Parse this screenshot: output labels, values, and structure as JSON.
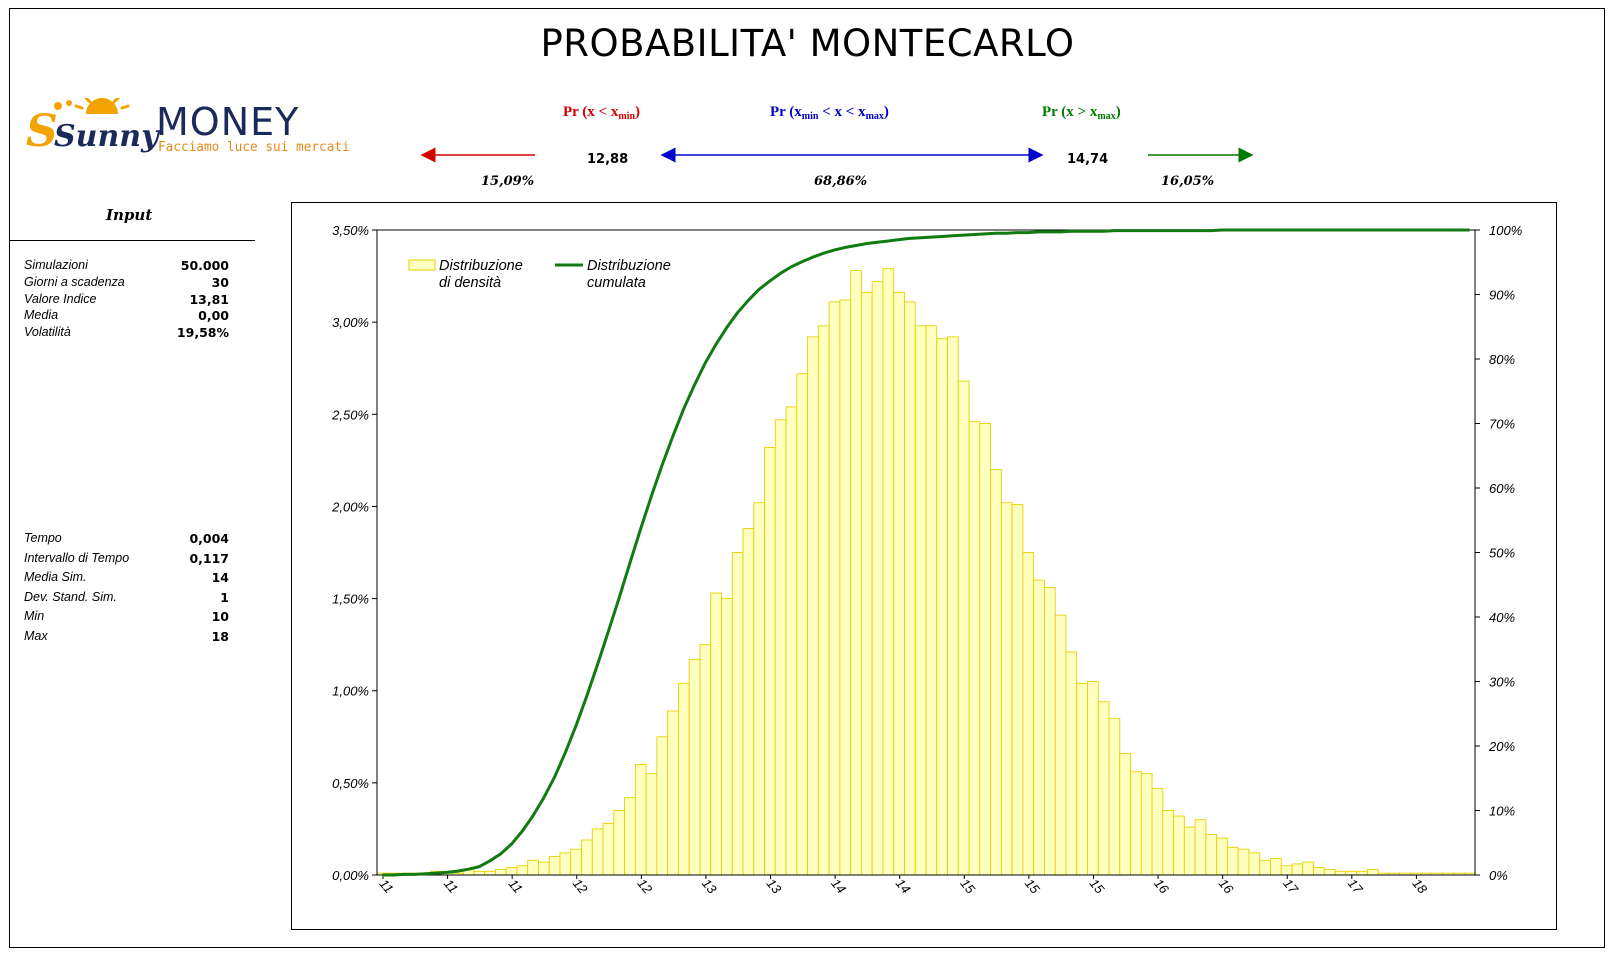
{
  "title": "PROBABILITA' MONTECARLO",
  "logo": {
    "name_part1": "Sunny",
    "name_part2": "MONEY",
    "tagline": "Facciamo luce sui mercati"
  },
  "probabilities": {
    "left": {
      "label_prefix": "Pr (x < x",
      "label_sub": "min",
      "label_suffix": ")",
      "color": "#d40000",
      "pct": "15,09%"
    },
    "mid": {
      "label_prefix": "Pr (x",
      "label_sub1": "min",
      "label_middle": " < x < x",
      "label_sub2": "max",
      "label_suffix": ")",
      "color": "#0000cc",
      "pct": "68,86%"
    },
    "right": {
      "label_prefix": "Pr (x > x",
      "label_sub": "max",
      "label_suffix": ")",
      "color": "#007a00",
      "pct": "16,05%"
    },
    "x_min": "12,88",
    "x_max": "14,74"
  },
  "input": {
    "title": "Input",
    "params": [
      {
        "label": "Simulazioni",
        "value": "50.000"
      },
      {
        "label": "Giorni a scadenza",
        "value": "30"
      },
      {
        "label": "Valore Indice",
        "value": "13,81"
      },
      {
        "label": "Media",
        "value": "0,00"
      },
      {
        "label": "Volatilità",
        "value": "19,58%"
      }
    ],
    "stats": [
      {
        "label": "Tempo",
        "value": "0,004"
      },
      {
        "label": "Intervallo di Tempo",
        "value": "0,117"
      },
      {
        "label": "Media Sim.",
        "value": "14"
      },
      {
        "label": "Dev. Stand. Sim.",
        "value": "1"
      },
      {
        "label": "Min",
        "value": "10"
      },
      {
        "label": "Max",
        "value": "18"
      }
    ]
  },
  "colors": {
    "bar_fill": "#ffffc0",
    "bar_stroke": "#e6d200",
    "line": "#117a11"
  },
  "chart_data": {
    "type": "bar",
    "y_left": {
      "min": 0,
      "max": 3.5,
      "ticks": [
        "0,00%",
        "0,50%",
        "1,00%",
        "1,50%",
        "2,00%",
        "2,50%",
        "3,00%",
        "3,50%"
      ]
    },
    "y_right": {
      "min": 0,
      "max": 100,
      "ticks": [
        "0%",
        "10%",
        "20%",
        "30%",
        "40%",
        "50%",
        "60%",
        "70%",
        "80%",
        "90%",
        "100%"
      ]
    },
    "x_tick_labels": [
      "11",
      "11",
      "11",
      "12",
      "12",
      "13",
      "13",
      "14",
      "14",
      "15",
      "15",
      "15",
      "16",
      "16",
      "17",
      "17",
      "18"
    ],
    "grid": false,
    "legend_position": "top-left",
    "series": [
      {
        "name": "Distribuzione di densità",
        "type": "bar",
        "values": [
          0.01,
          0.01,
          0.01,
          0.01,
          0.01,
          0.02,
          0.02,
          0.01,
          0.03,
          0.02,
          0.02,
          0.03,
          0.04,
          0.05,
          0.08,
          0.07,
          0.1,
          0.12,
          0.14,
          0.19,
          0.25,
          0.28,
          0.35,
          0.42,
          0.6,
          0.55,
          0.75,
          0.89,
          1.04,
          1.17,
          1.25,
          1.53,
          1.5,
          1.75,
          1.88,
          2.02,
          2.32,
          2.47,
          2.54,
          2.72,
          2.92,
          2.98,
          3.11,
          3.12,
          3.28,
          3.16,
          3.22,
          3.29,
          3.16,
          3.11,
          2.98,
          2.98,
          2.91,
          2.92,
          2.68,
          2.46,
          2.45,
          2.2,
          2.02,
          2.01,
          1.75,
          1.6,
          1.56,
          1.41,
          1.21,
          1.04,
          1.05,
          0.94,
          0.85,
          0.66,
          0.56,
          0.55,
          0.47,
          0.35,
          0.32,
          0.26,
          0.3,
          0.22,
          0.2,
          0.15,
          0.14,
          0.12,
          0.08,
          0.09,
          0.05,
          0.06,
          0.07,
          0.04,
          0.03,
          0.02,
          0.02,
          0.02,
          0.03,
          0.01,
          0.01,
          0.01,
          0.01,
          0.01,
          0.01,
          0.01,
          0.01,
          0.01
        ]
      },
      {
        "name": "Distribuzione cumulata",
        "type": "line",
        "values": [
          0,
          0,
          0.1,
          0.1,
          0.2,
          0.3,
          0.4,
          0.6,
          0.9,
          1.3,
          2.2,
          3.3,
          4.8,
          6.8,
          9.2,
          12,
          15.2,
          19,
          23.2,
          27.8,
          32.7,
          37.8,
          43,
          48.4,
          53.7,
          58.8,
          63.6,
          68.1,
          72.3,
          76,
          79.4,
          82.3,
          84.9,
          87.2,
          89.1,
          90.8,
          92.1,
          93.3,
          94.3,
          95.1,
          95.8,
          96.4,
          96.9,
          97.3,
          97.6,
          97.9,
          98.1,
          98.3,
          98.5,
          98.7,
          98.8,
          98.9,
          99,
          99.1,
          99.2,
          99.3,
          99.4,
          99.5,
          99.5,
          99.6,
          99.6,
          99.7,
          99.7,
          99.7,
          99.8,
          99.8,
          99.8,
          99.8,
          99.9,
          99.9,
          99.9,
          99.9,
          99.9,
          99.9,
          99.9,
          99.9,
          99.9,
          99.9,
          100,
          100,
          100,
          100,
          100,
          100,
          100,
          100,
          100,
          100,
          100,
          100,
          100,
          100,
          100,
          100,
          100,
          100,
          100,
          100,
          100,
          100,
          100,
          100
        ]
      }
    ]
  }
}
